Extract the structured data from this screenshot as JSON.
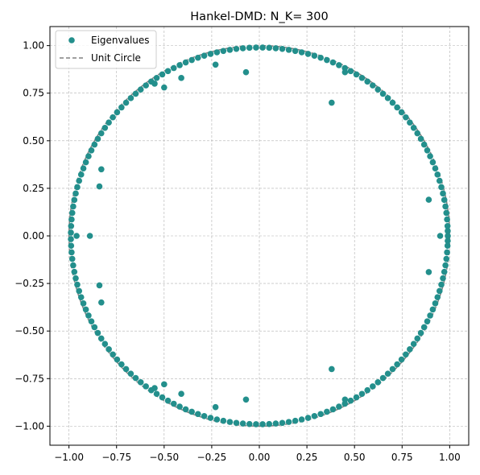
{
  "chart_data": {
    "type": "scatter",
    "title": "Hankel-DMD: N_K= 300",
    "xlabel": "",
    "ylabel": "",
    "xlim": [
      -1.1,
      1.1
    ],
    "ylim": [
      -1.1,
      1.1
    ],
    "xticks": [
      -1.0,
      -0.75,
      -0.5,
      -0.25,
      0.0,
      0.25,
      0.5,
      0.75,
      1.0
    ],
    "yticks": [
      -1.0,
      -0.75,
      -0.5,
      -0.25,
      0.0,
      0.25,
      0.5,
      0.75,
      1.0
    ],
    "xtick_labels": [
      "−1.00",
      "−0.75",
      "−0.50",
      "−0.25",
      "0.00",
      "0.25",
      "0.50",
      "0.75",
      "1.00"
    ],
    "ytick_labels": [
      "−1.00",
      "−0.75",
      "−0.50",
      "−0.25",
      "0.00",
      "0.25",
      "0.50",
      "0.75",
      "1.00"
    ],
    "grid": true,
    "legend_position": "top-left",
    "series": [
      {
        "name": "Eigenvalues",
        "kind": "scatter",
        "color": "#238f8c",
        "radius_estimate": 0.99,
        "ring_angles_deg": [
          0,
          1.5,
          3,
          5,
          7,
          9,
          11,
          13,
          15,
          17,
          19,
          21,
          23,
          25,
          27,
          29,
          31,
          33,
          35,
          37,
          39,
          41,
          43,
          45,
          47,
          49,
          51,
          53,
          55,
          57,
          59,
          61,
          63,
          65,
          67,
          69,
          71,
          73,
          75,
          77,
          79,
          81,
          83,
          85,
          87,
          89,
          91,
          93,
          95,
          97,
          99,
          101,
          103,
          105,
          107,
          109,
          111,
          113,
          115,
          117,
          119,
          121,
          123,
          125,
          127,
          129,
          131,
          133,
          135,
          137,
          139,
          141,
          143,
          145,
          147,
          149,
          151,
          153,
          155,
          157,
          159,
          161,
          163,
          165,
          167,
          169,
          171,
          173,
          175,
          177,
          179
        ],
        "interior_points": [
          [
            -0.07,
            0.86
          ],
          [
            -0.23,
            0.9
          ],
          [
            -0.41,
            0.83
          ],
          [
            -0.55,
            0.8
          ],
          [
            -0.5,
            0.78
          ],
          [
            0.38,
            0.7
          ],
          [
            0.45,
            0.86
          ],
          [
            0.89,
            0.19
          ],
          [
            -0.84,
            0.26
          ],
          [
            -0.83,
            0.35
          ],
          [
            -0.89,
            0.0
          ],
          [
            -0.96,
            0.0
          ],
          [
            0.95,
            0.0
          ],
          [
            -0.07,
            -0.86
          ],
          [
            -0.23,
            -0.9
          ],
          [
            -0.41,
            -0.83
          ],
          [
            -0.55,
            -0.8
          ],
          [
            -0.5,
            -0.78
          ],
          [
            0.38,
            -0.7
          ],
          [
            0.45,
            -0.86
          ],
          [
            0.89,
            -0.19
          ],
          [
            -0.84,
            -0.26
          ],
          [
            -0.83,
            -0.35
          ]
        ]
      },
      {
        "name": "Unit Circle",
        "kind": "circle",
        "radius": 1.0,
        "color": "#808080",
        "style": "dashed"
      }
    ]
  }
}
